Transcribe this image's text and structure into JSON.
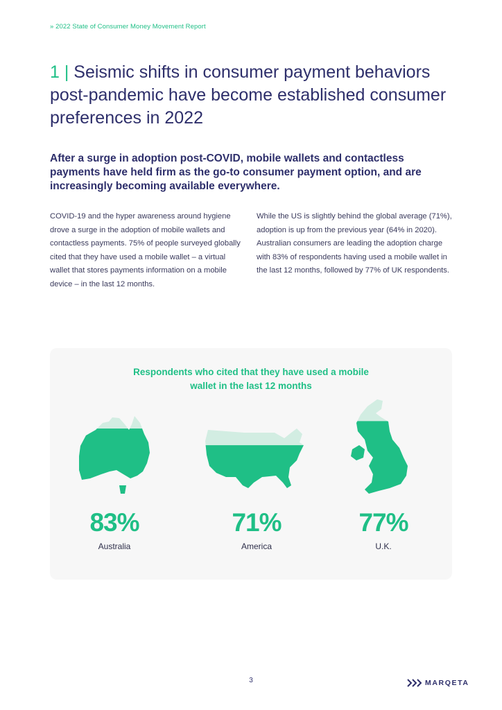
{
  "header": {
    "breadcrumb": "» 2022 State of Consumer Money Movement Report"
  },
  "section": {
    "number": "1 |",
    "title": " Seismic shifts in consumer payment behaviors post-pandemic have become established consumer preferences in 2022",
    "subtitle": "After a surge in adoption post-COVID, mobile wallets and contactless payments have held firm as the go-to consumer payment option, and are increasingly becoming available everywhere.",
    "body_left": "COVID-19 and the hyper awareness around hygiene drove a surge in the adoption of mobile wallets and contactless payments. 75% of people surveyed globally cited that they have used a mobile wallet – a virtual wallet that stores payments information on a mobile device – in the last 12 months.",
    "body_right": "While the US is slightly behind the global average (71%), adoption is up from the previous year (64% in 2020). Australian consumers are leading the adoption charge with 83% of respondents having used a mobile wallet in the last 12 months, followed by 77% of UK respondents."
  },
  "infographic": {
    "title_line1": "Respondents who cited that they have used a mobile",
    "title_line2": "wallet in the last 12 months",
    "colors": {
      "fill": "#1fbf86",
      "empty": "#d2ede2"
    },
    "countries": [
      {
        "name": "Australia",
        "percent_label": "83%",
        "value": 83
      },
      {
        "name": "America",
        "percent_label": "71%",
        "value": 71
      },
      {
        "name": "U.K.",
        "percent_label": "77%",
        "value": 77
      }
    ]
  },
  "footer": {
    "page_number": "3",
    "logo_text": "MARQETA",
    "logo_icon": "chevrons-icon"
  }
}
